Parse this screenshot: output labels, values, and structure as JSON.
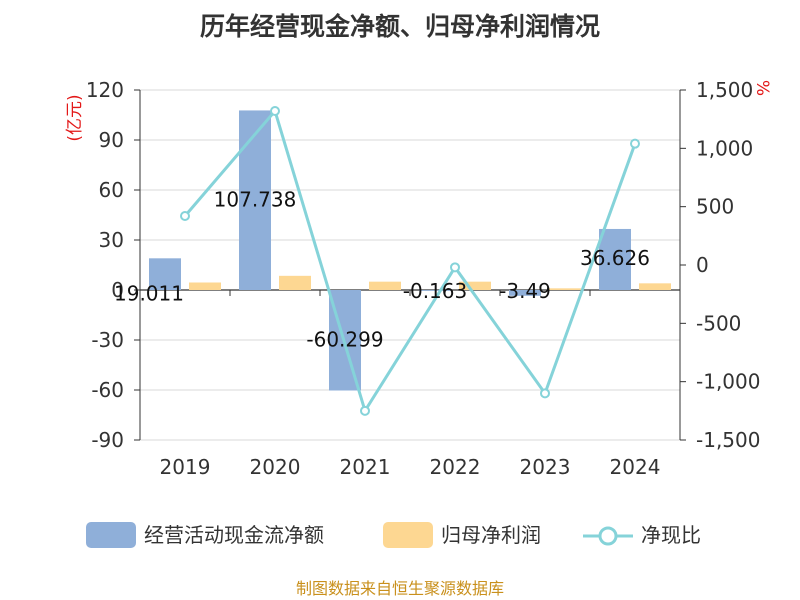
{
  "chart_data": {
    "type": "bar",
    "title": "历年经营现金净额、归母净利润情况",
    "categories": [
      "2019",
      "2020",
      "2021",
      "2022",
      "2023",
      "2024"
    ],
    "series": [
      {
        "name": "经营活动现金流净额",
        "kind": "bar",
        "axis": "left",
        "color": "#8fafd9",
        "values": [
          19.011,
          107.738,
          -60.299,
          -0.163,
          -3.49,
          36.626
        ]
      },
      {
        "name": "归母净利润",
        "kind": "bar",
        "axis": "left",
        "color": "#fdd792",
        "values": [
          4.5,
          8.5,
          5.0,
          5.0,
          1.0,
          4.0
        ]
      },
      {
        "name": "净现比",
        "kind": "line",
        "axis": "right",
        "color": "#85d3d9",
        "values": [
          420,
          1320,
          -1250,
          -20,
          -1100,
          1040
        ]
      }
    ],
    "data_labels": [
      "19.011",
      "107.738",
      "-60.299",
      "-0.163",
      "-3.49",
      "36.626"
    ],
    "y_left": {
      "unit": "(亿元)",
      "min": -90,
      "max": 120,
      "ticks": [
        120,
        90,
        60,
        30,
        0,
        -30,
        -60,
        -90
      ],
      "tick_labels": [
        "120",
        "90",
        "60",
        "30",
        "0",
        "-30",
        "-60",
        "-90"
      ]
    },
    "y_right": {
      "unit": "%",
      "min": -1500,
      "max": 1500,
      "ticks": [
        1500,
        1000,
        500,
        0,
        -500,
        -1000,
        -1500
      ],
      "tick_labels": [
        "1,500",
        "1,000",
        "500",
        "0",
        "-500",
        "-1,000",
        "-1,500"
      ]
    },
    "legend_position": "bottom",
    "source": "制图数据来自恒生聚源数据库"
  }
}
